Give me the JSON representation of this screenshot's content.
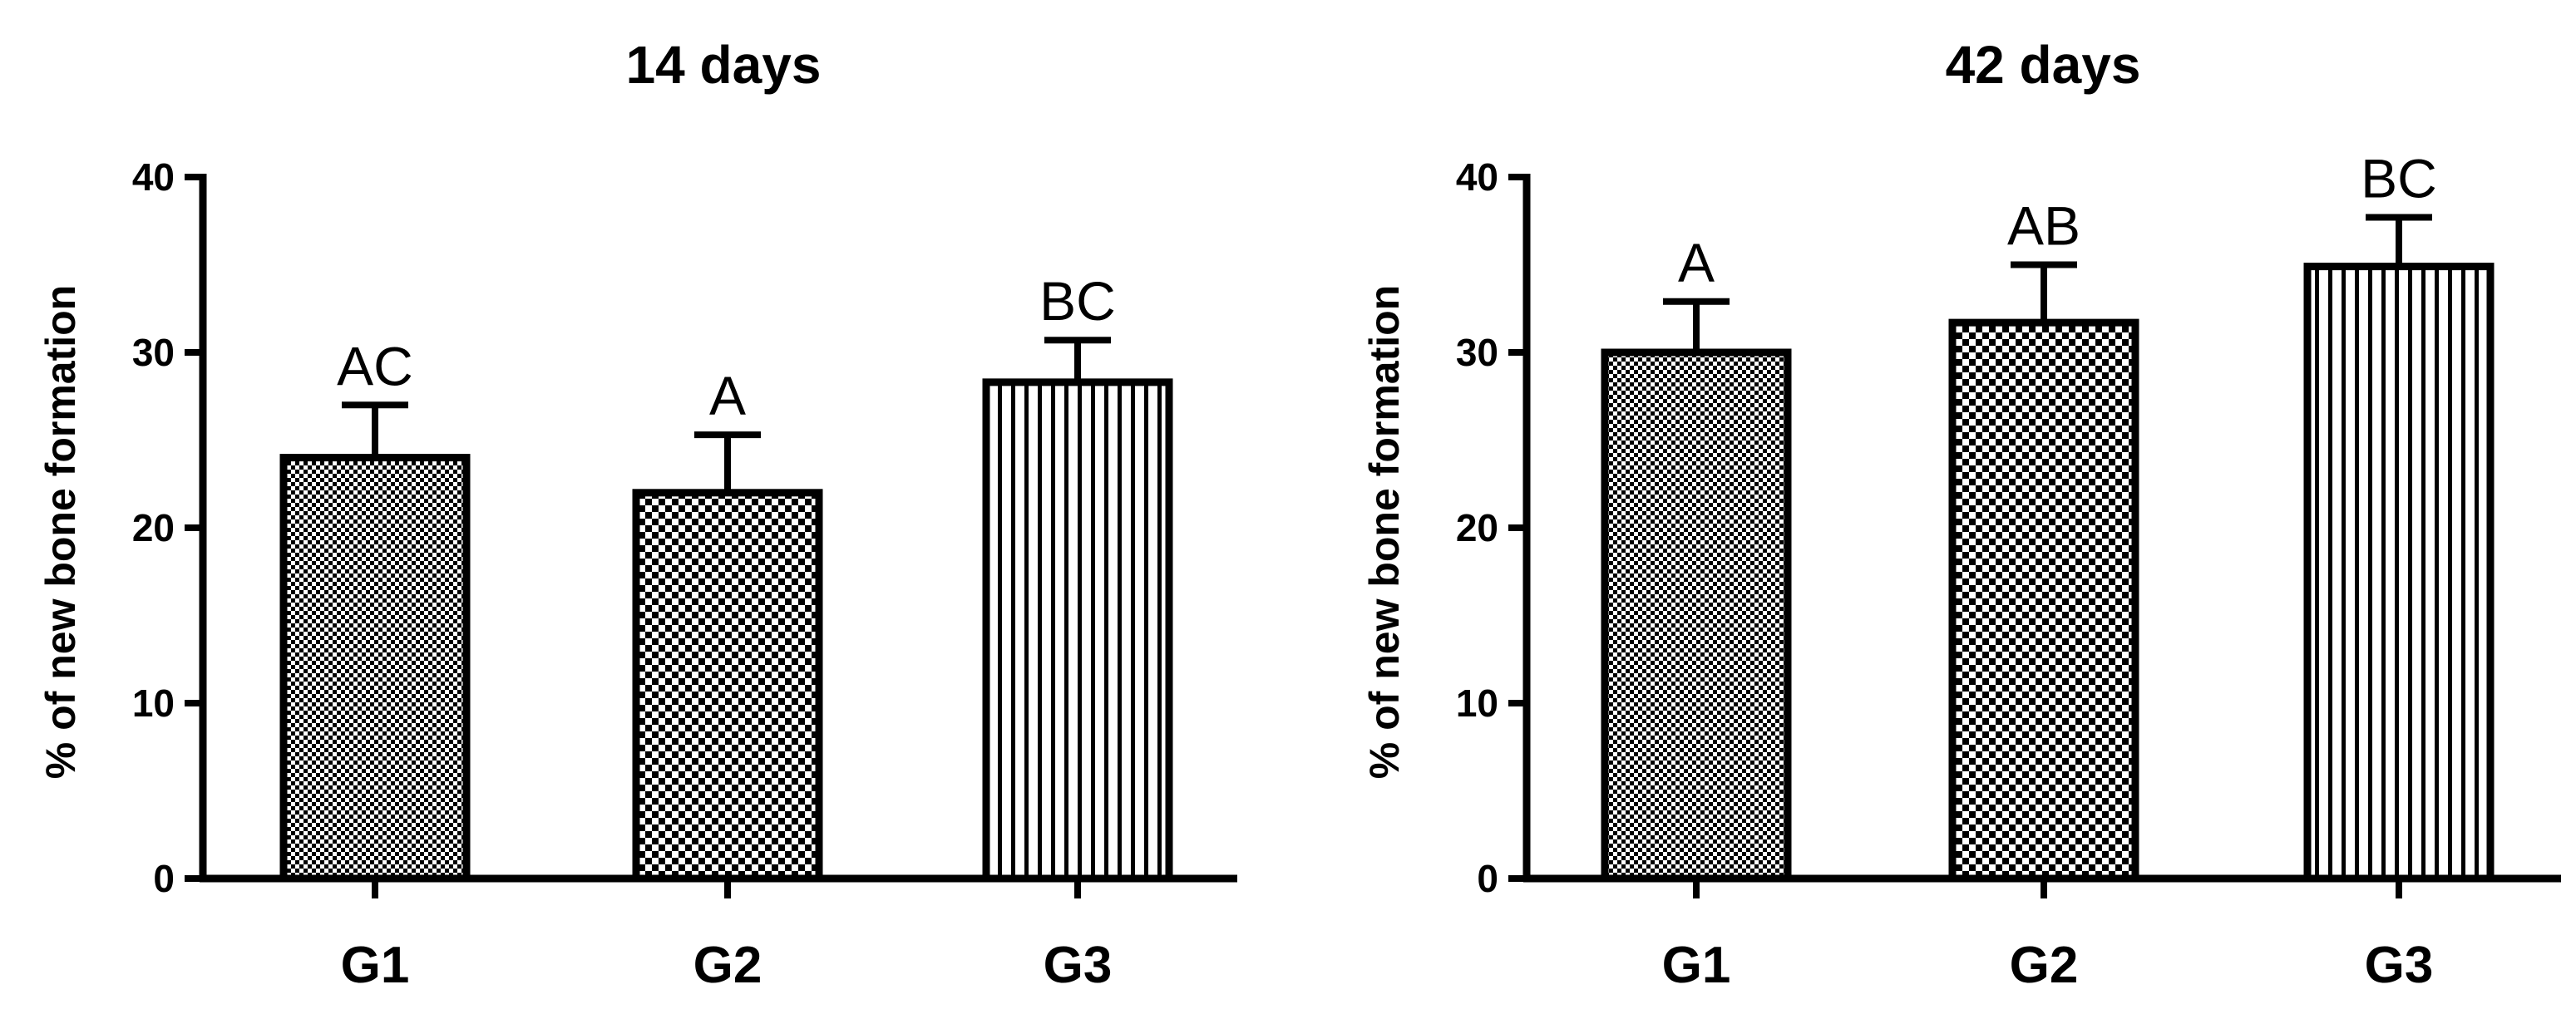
{
  "chart_data": [
    {
      "type": "bar",
      "title": "14 days",
      "ylabel": "% of new bone formation",
      "xlabel": "",
      "ylim": [
        0,
        40
      ],
      "yticks": [
        0,
        10,
        20,
        30,
        40
      ],
      "categories": [
        "G1",
        "G2",
        "G3"
      ],
      "values": [
        24,
        22,
        28.3
      ],
      "errors": [
        3,
        3.3,
        2.4
      ],
      "annotations": [
        "AC",
        "A",
        "BC"
      ],
      "patterns": [
        "fine-check",
        "coarse-check",
        "vertical-lines"
      ]
    },
    {
      "type": "bar",
      "title": "42 days",
      "ylabel": "% of new bone formation",
      "xlabel": "",
      "ylim": [
        0,
        40
      ],
      "yticks": [
        0,
        10,
        20,
        30,
        40
      ],
      "categories": [
        "G1",
        "G2",
        "G3"
      ],
      "values": [
        30,
        31.7,
        34.9
      ],
      "errors": [
        2.9,
        3.3,
        2.8
      ],
      "annotations": [
        "A",
        "AB",
        "BC"
      ],
      "patterns": [
        "fine-check",
        "coarse-check",
        "vertical-lines"
      ]
    }
  ]
}
